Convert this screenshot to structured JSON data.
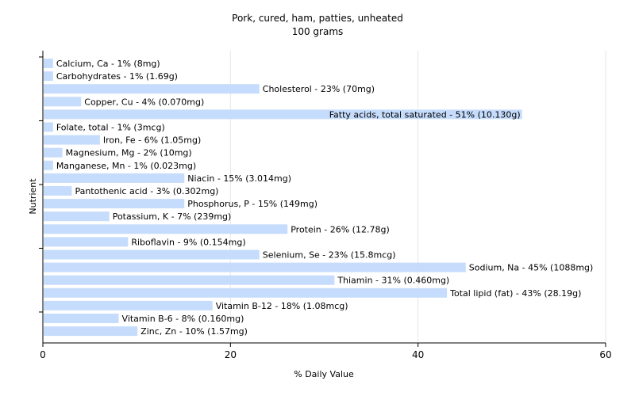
{
  "chart_data": {
    "type": "bar",
    "orientation": "horizontal",
    "title": "Pork, cured, ham, patties, unheated",
    "subtitle": "100 grams",
    "xlabel": "% Daily Value",
    "ylabel": "Nutrient",
    "xlim": [
      0,
      60
    ],
    "xticks": [
      0,
      20,
      40,
      60
    ],
    "grid": true,
    "bar_color": "#c6dcfc",
    "categories": [
      "Calcium, Ca",
      "Carbohydrates",
      "Cholesterol",
      "Copper, Cu",
      "Fatty acids, total saturated",
      "Folate, total",
      "Iron, Fe",
      "Magnesium, Mg",
      "Manganese, Mn",
      "Niacin",
      "Pantothenic acid",
      "Phosphorus, P",
      "Potassium, K",
      "Protein",
      "Riboflavin",
      "Selenium, Se",
      "Sodium, Na",
      "Thiamin",
      "Total lipid (fat)",
      "Vitamin B-12",
      "Vitamin B-6",
      "Zinc, Zn"
    ],
    "values": [
      1,
      1,
      23,
      4,
      51,
      1,
      6,
      2,
      1,
      15,
      3,
      15,
      7,
      26,
      9,
      23,
      45,
      31,
      43,
      18,
      8,
      10
    ],
    "labels": [
      "Calcium, Ca - 1% (8mg)",
      "Carbohydrates - 1% (1.69g)",
      "Cholesterol - 23% (70mg)",
      "Copper, Cu - 4% (0.070mg)",
      "Fatty acids, total saturated - 51% (10.130g)",
      "Folate, total - 1% (3mcg)",
      "Iron, Fe - 6% (1.05mg)",
      "Magnesium, Mg - 2% (10mg)",
      "Manganese, Mn - 1% (0.023mg)",
      "Niacin - 15% (3.014mg)",
      "Pantothenic acid - 3% (0.302mg)",
      "Phosphorus, P - 15% (149mg)",
      "Potassium, K - 7% (239mg)",
      "Protein - 26% (12.78g)",
      "Riboflavin - 9% (0.154mg)",
      "Selenium, Se - 23% (15.8mcg)",
      "Sodium, Na - 45% (1088mg)",
      "Thiamin - 31% (0.460mg)",
      "Total lipid (fat) - 43% (28.19g)",
      "Vitamin B-12 - 18% (1.08mcg)",
      "Vitamin B-6 - 8% (0.160mg)",
      "Zinc, Zn - 10% (1.57mg)"
    ]
  }
}
